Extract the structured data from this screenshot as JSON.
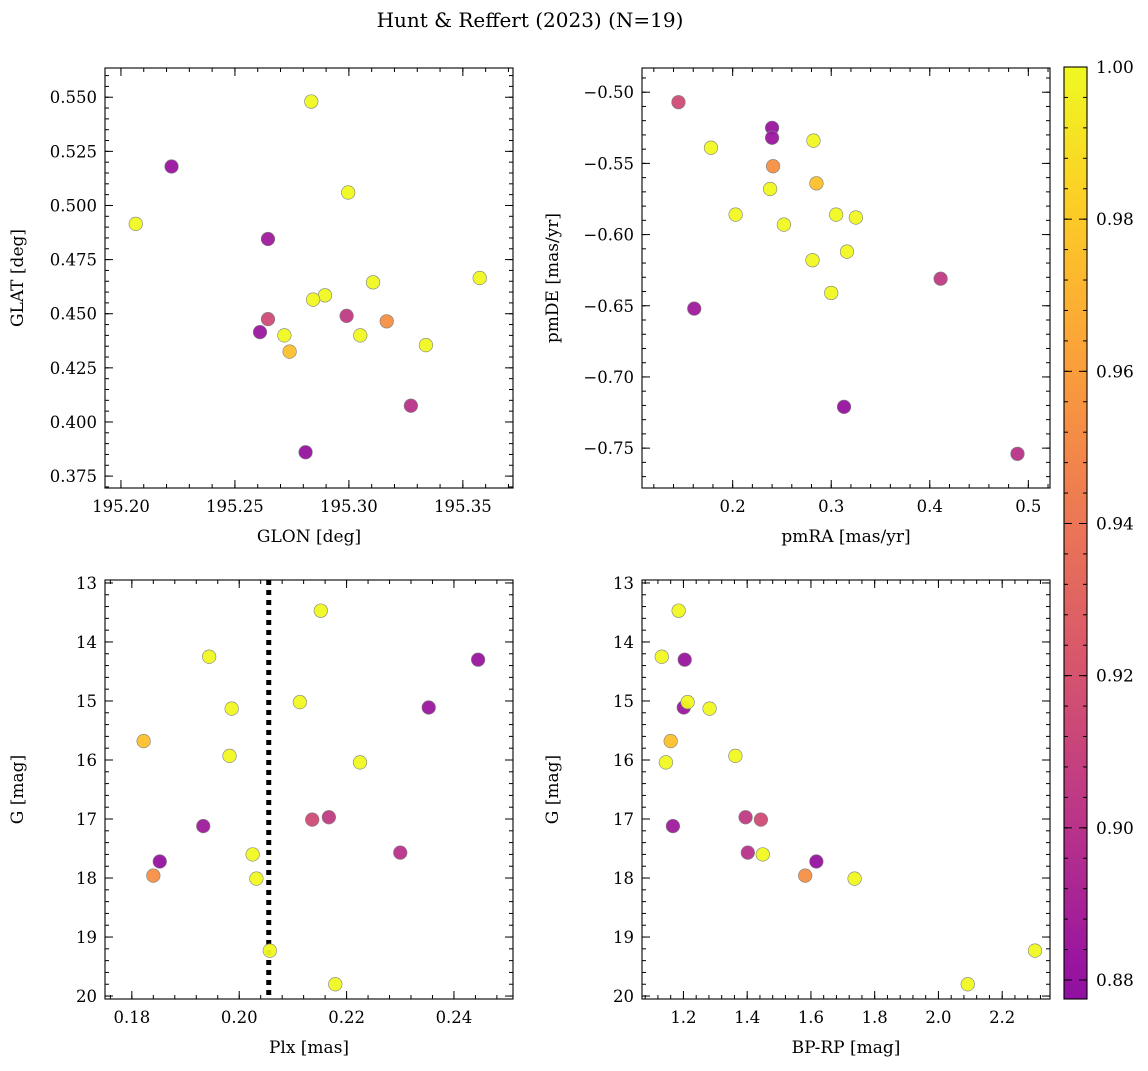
{
  "figure": {
    "title": "Hunt & Reffert (2023) (N=19)"
  },
  "colorbar": {
    "min": 0.8775,
    "max": 1.0,
    "ticks": [
      0.88,
      0.9,
      0.92,
      0.94,
      0.96,
      0.98,
      1.0
    ],
    "tick_labels": [
      "0.88",
      "0.90",
      "0.92",
      "0.94",
      "0.96",
      "0.98",
      "1.00"
    ],
    "colormap": "plasma"
  },
  "chart_data": [
    {
      "type": "scatter",
      "id": "glon-glat",
      "xlabel": "GLON [deg]",
      "ylabel": "GLAT [deg]",
      "xlim": [
        195.193,
        195.372
      ],
      "ylim": [
        0.3695,
        0.5635
      ],
      "xticks": [
        195.2,
        195.25,
        195.3,
        195.35
      ],
      "xtick_labels": [
        "195.20",
        "195.25",
        "195.30",
        "195.35"
      ],
      "yticks": [
        0.375,
        0.4,
        0.425,
        0.45,
        0.475,
        0.5,
        0.525,
        0.55
      ],
      "ytick_labels": [
        "0.375",
        "0.400",
        "0.425",
        "0.450",
        "0.475",
        "0.500",
        "0.525",
        "0.550"
      ],
      "points": [
        {
          "x": 195.2065,
          "y": 0.4915,
          "c": 1.0
        },
        {
          "x": 195.2222,
          "y": 0.518,
          "c": 0.882
        },
        {
          "x": 195.2835,
          "y": 0.548,
          "c": 1.0
        },
        {
          "x": 195.2997,
          "y": 0.506,
          "c": 1.0
        },
        {
          "x": 195.2645,
          "y": 0.4845,
          "c": 0.885
        },
        {
          "x": 195.3574,
          "y": 0.4665,
          "c": 1.0
        },
        {
          "x": 195.3106,
          "y": 0.4645,
          "c": 1.0
        },
        {
          "x": 195.2895,
          "y": 0.4585,
          "c": 1.0
        },
        {
          "x": 195.2843,
          "y": 0.4565,
          "c": 1.0
        },
        {
          "x": 195.299,
          "y": 0.449,
          "c": 0.905
        },
        {
          "x": 195.2645,
          "y": 0.4475,
          "c": 0.915
        },
        {
          "x": 195.3166,
          "y": 0.4465,
          "c": 0.953
        },
        {
          "x": 195.261,
          "y": 0.4415,
          "c": 0.883
        },
        {
          "x": 195.2717,
          "y": 0.44,
          "c": 1.0
        },
        {
          "x": 195.305,
          "y": 0.44,
          "c": 1.0
        },
        {
          "x": 195.3338,
          "y": 0.4355,
          "c": 1.0
        },
        {
          "x": 195.274,
          "y": 0.4325,
          "c": 0.976
        },
        {
          "x": 195.3272,
          "y": 0.4075,
          "c": 0.9
        },
        {
          "x": 195.281,
          "y": 0.386,
          "c": 0.88
        }
      ]
    },
    {
      "type": "scatter",
      "id": "pmra-pmde",
      "xlabel": "pmRA [mas/yr]",
      "ylabel": "pmDE [mas/yr]",
      "xlim": [
        0.108,
        0.522
      ],
      "ylim": [
        -0.778,
        -0.483
      ],
      "xticks": [
        0.2,
        0.3,
        0.4,
        0.5
      ],
      "xtick_labels": [
        "0.2",
        "0.3",
        "0.4",
        "0.5"
      ],
      "yticks": [
        -0.75,
        -0.7,
        -0.65,
        -0.6,
        -0.55,
        -0.5
      ],
      "ytick_labels": [
        "−0.75",
        "−0.70",
        "−0.65",
        "−0.60",
        "−0.55",
        "−0.50"
      ],
      "points": [
        {
          "x": 0.145,
          "y": -0.507,
          "c": 0.915
        },
        {
          "x": 0.24,
          "y": -0.525,
          "c": 0.882
        },
        {
          "x": 0.24,
          "y": -0.532,
          "c": 0.883
        },
        {
          "x": 0.282,
          "y": -0.534,
          "c": 1.0
        },
        {
          "x": 0.178,
          "y": -0.539,
          "c": 1.0
        },
        {
          "x": 0.241,
          "y": -0.552,
          "c": 0.953
        },
        {
          "x": 0.285,
          "y": -0.564,
          "c": 0.976
        },
        {
          "x": 0.238,
          "y": -0.568,
          "c": 1.0
        },
        {
          "x": 0.203,
          "y": -0.586,
          "c": 1.0
        },
        {
          "x": 0.305,
          "y": -0.586,
          "c": 1.0
        },
        {
          "x": 0.325,
          "y": -0.588,
          "c": 1.0
        },
        {
          "x": 0.252,
          "y": -0.593,
          "c": 1.0
        },
        {
          "x": 0.316,
          "y": -0.612,
          "c": 1.0
        },
        {
          "x": 0.281,
          "y": -0.618,
          "c": 1.0
        },
        {
          "x": 0.411,
          "y": -0.631,
          "c": 0.905
        },
        {
          "x": 0.3,
          "y": -0.641,
          "c": 1.0
        },
        {
          "x": 0.161,
          "y": -0.652,
          "c": 0.885
        },
        {
          "x": 0.313,
          "y": -0.721,
          "c": 0.88
        },
        {
          "x": 0.489,
          "y": -0.754,
          "c": 0.9
        }
      ]
    },
    {
      "type": "scatter",
      "id": "plx-g",
      "xlabel": "Plx [mas]",
      "ylabel": "G [mag]",
      "xlim": [
        0.175,
        0.251
      ],
      "ylim": [
        20.05,
        12.95
      ],
      "y_inverted": true,
      "xticks": [
        0.18,
        0.2,
        0.22,
        0.24
      ],
      "xtick_labels": [
        "0.18",
        "0.20",
        "0.22",
        "0.24"
      ],
      "yticks": [
        13,
        14,
        15,
        16,
        17,
        18,
        19,
        20
      ],
      "ytick_labels": [
        "13",
        "14",
        "15",
        "16",
        "17",
        "18",
        "19",
        "20"
      ],
      "vline": {
        "x": 0.2055,
        "style": "dotted",
        "color": "#000000"
      },
      "points": [
        {
          "x": 0.2152,
          "y": 13.47,
          "c": 1.0
        },
        {
          "x": 0.1944,
          "y": 14.25,
          "c": 1.0
        },
        {
          "x": 0.2445,
          "y": 14.3,
          "c": 0.882
        },
        {
          "x": 0.2113,
          "y": 15.02,
          "c": 1.0
        },
        {
          "x": 0.2353,
          "y": 15.11,
          "c": 0.883
        },
        {
          "x": 0.1986,
          "y": 15.13,
          "c": 1.0
        },
        {
          "x": 0.1822,
          "y": 15.68,
          "c": 0.976
        },
        {
          "x": 0.1982,
          "y": 15.93,
          "c": 1.0
        },
        {
          "x": 0.2225,
          "y": 16.04,
          "c": 1.0
        },
        {
          "x": 0.2167,
          "y": 16.97,
          "c": 0.905
        },
        {
          "x": 0.2136,
          "y": 17.01,
          "c": 0.915
        },
        {
          "x": 0.1933,
          "y": 17.12,
          "c": 0.885
        },
        {
          "x": 0.23,
          "y": 17.57,
          "c": 0.9
        },
        {
          "x": 0.2025,
          "y": 17.6,
          "c": 1.0
        },
        {
          "x": 0.1852,
          "y": 17.72,
          "c": 0.88
        },
        {
          "x": 0.184,
          "y": 17.96,
          "c": 0.953
        },
        {
          "x": 0.2032,
          "y": 18.01,
          "c": 1.0
        },
        {
          "x": 0.2057,
          "y": 19.23,
          "c": 1.0
        },
        {
          "x": 0.2179,
          "y": 19.8,
          "c": 1.0
        }
      ]
    },
    {
      "type": "scatter",
      "id": "bprp-g",
      "xlabel": "BP-RP [mag]",
      "ylabel": "G [mag]",
      "xlim": [
        1.07,
        2.35
      ],
      "ylim": [
        20.05,
        12.95
      ],
      "y_inverted": true,
      "xticks": [
        1.2,
        1.4,
        1.6,
        1.8,
        2.0,
        2.2
      ],
      "xtick_labels": [
        "1.2",
        "1.4",
        "1.6",
        "1.8",
        "2.0",
        "2.2"
      ],
      "yticks": [
        13,
        14,
        15,
        16,
        17,
        18,
        19,
        20
      ],
      "ytick_labels": [
        "13",
        "14",
        "15",
        "16",
        "17",
        "18",
        "19",
        "20"
      ],
      "points": [
        {
          "x": 1.185,
          "y": 13.47,
          "c": 1.0
        },
        {
          "x": 1.132,
          "y": 14.25,
          "c": 1.0
        },
        {
          "x": 1.204,
          "y": 14.3,
          "c": 0.882
        },
        {
          "x": 1.213,
          "y": 15.02,
          "c": 1.0
        },
        {
          "x": 1.201,
          "y": 15.11,
          "c": 0.883
        },
        {
          "x": 1.282,
          "y": 15.13,
          "c": 1.0
        },
        {
          "x": 1.16,
          "y": 15.68,
          "c": 0.976
        },
        {
          "x": 1.363,
          "y": 15.93,
          "c": 1.0
        },
        {
          "x": 1.145,
          "y": 16.04,
          "c": 1.0
        },
        {
          "x": 1.395,
          "y": 16.97,
          "c": 0.905
        },
        {
          "x": 1.443,
          "y": 17.01,
          "c": 0.915
        },
        {
          "x": 1.167,
          "y": 17.12,
          "c": 0.885
        },
        {
          "x": 1.402,
          "y": 17.57,
          "c": 0.9
        },
        {
          "x": 1.449,
          "y": 17.6,
          "c": 1.0
        },
        {
          "x": 1.617,
          "y": 17.72,
          "c": 0.88
        },
        {
          "x": 1.582,
          "y": 17.96,
          "c": 0.953
        },
        {
          "x": 1.737,
          "y": 18.01,
          "c": 1.0
        },
        {
          "x": 2.303,
          "y": 19.23,
          "c": 1.0
        },
        {
          "x": 2.092,
          "y": 19.8,
          "c": 1.0
        }
      ]
    }
  ]
}
